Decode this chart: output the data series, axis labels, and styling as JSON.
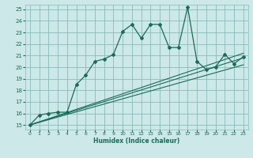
{
  "title": "",
  "xlabel": "Humidex (Indice chaleur)",
  "bg_color": "#cce8e8",
  "grid_color": "#88bbbb",
  "line_color": "#1a6b5a",
  "xlim": [
    -0.5,
    23.5
  ],
  "ylim": [
    14.6,
    25.4
  ],
  "xticks": [
    0,
    1,
    2,
    3,
    4,
    5,
    6,
    7,
    8,
    9,
    10,
    11,
    12,
    13,
    14,
    15,
    16,
    17,
    18,
    19,
    20,
    21,
    22,
    23
  ],
  "yticks": [
    15,
    16,
    17,
    18,
    19,
    20,
    21,
    22,
    23,
    24,
    25
  ],
  "line1_x": [
    0,
    1,
    2,
    3,
    4,
    5,
    6,
    7,
    8,
    9,
    10,
    11,
    12,
    13,
    14,
    15,
    16,
    17,
    18,
    19,
    20,
    21,
    22,
    23
  ],
  "line1_y": [
    15.0,
    15.85,
    16.0,
    16.1,
    16.1,
    18.5,
    19.3,
    20.5,
    20.7,
    21.1,
    23.1,
    23.7,
    22.5,
    23.7,
    23.7,
    21.7,
    21.7,
    25.2,
    20.5,
    19.8,
    20.0,
    21.1,
    20.3,
    20.9
  ],
  "line2_x": [
    0,
    23
  ],
  "line2_y": [
    15.0,
    20.8
  ],
  "line3_x": [
    0,
    23
  ],
  "line3_y": [
    15.0,
    21.2
  ],
  "line4_x": [
    0,
    23
  ],
  "line4_y": [
    15.0,
    20.2
  ]
}
